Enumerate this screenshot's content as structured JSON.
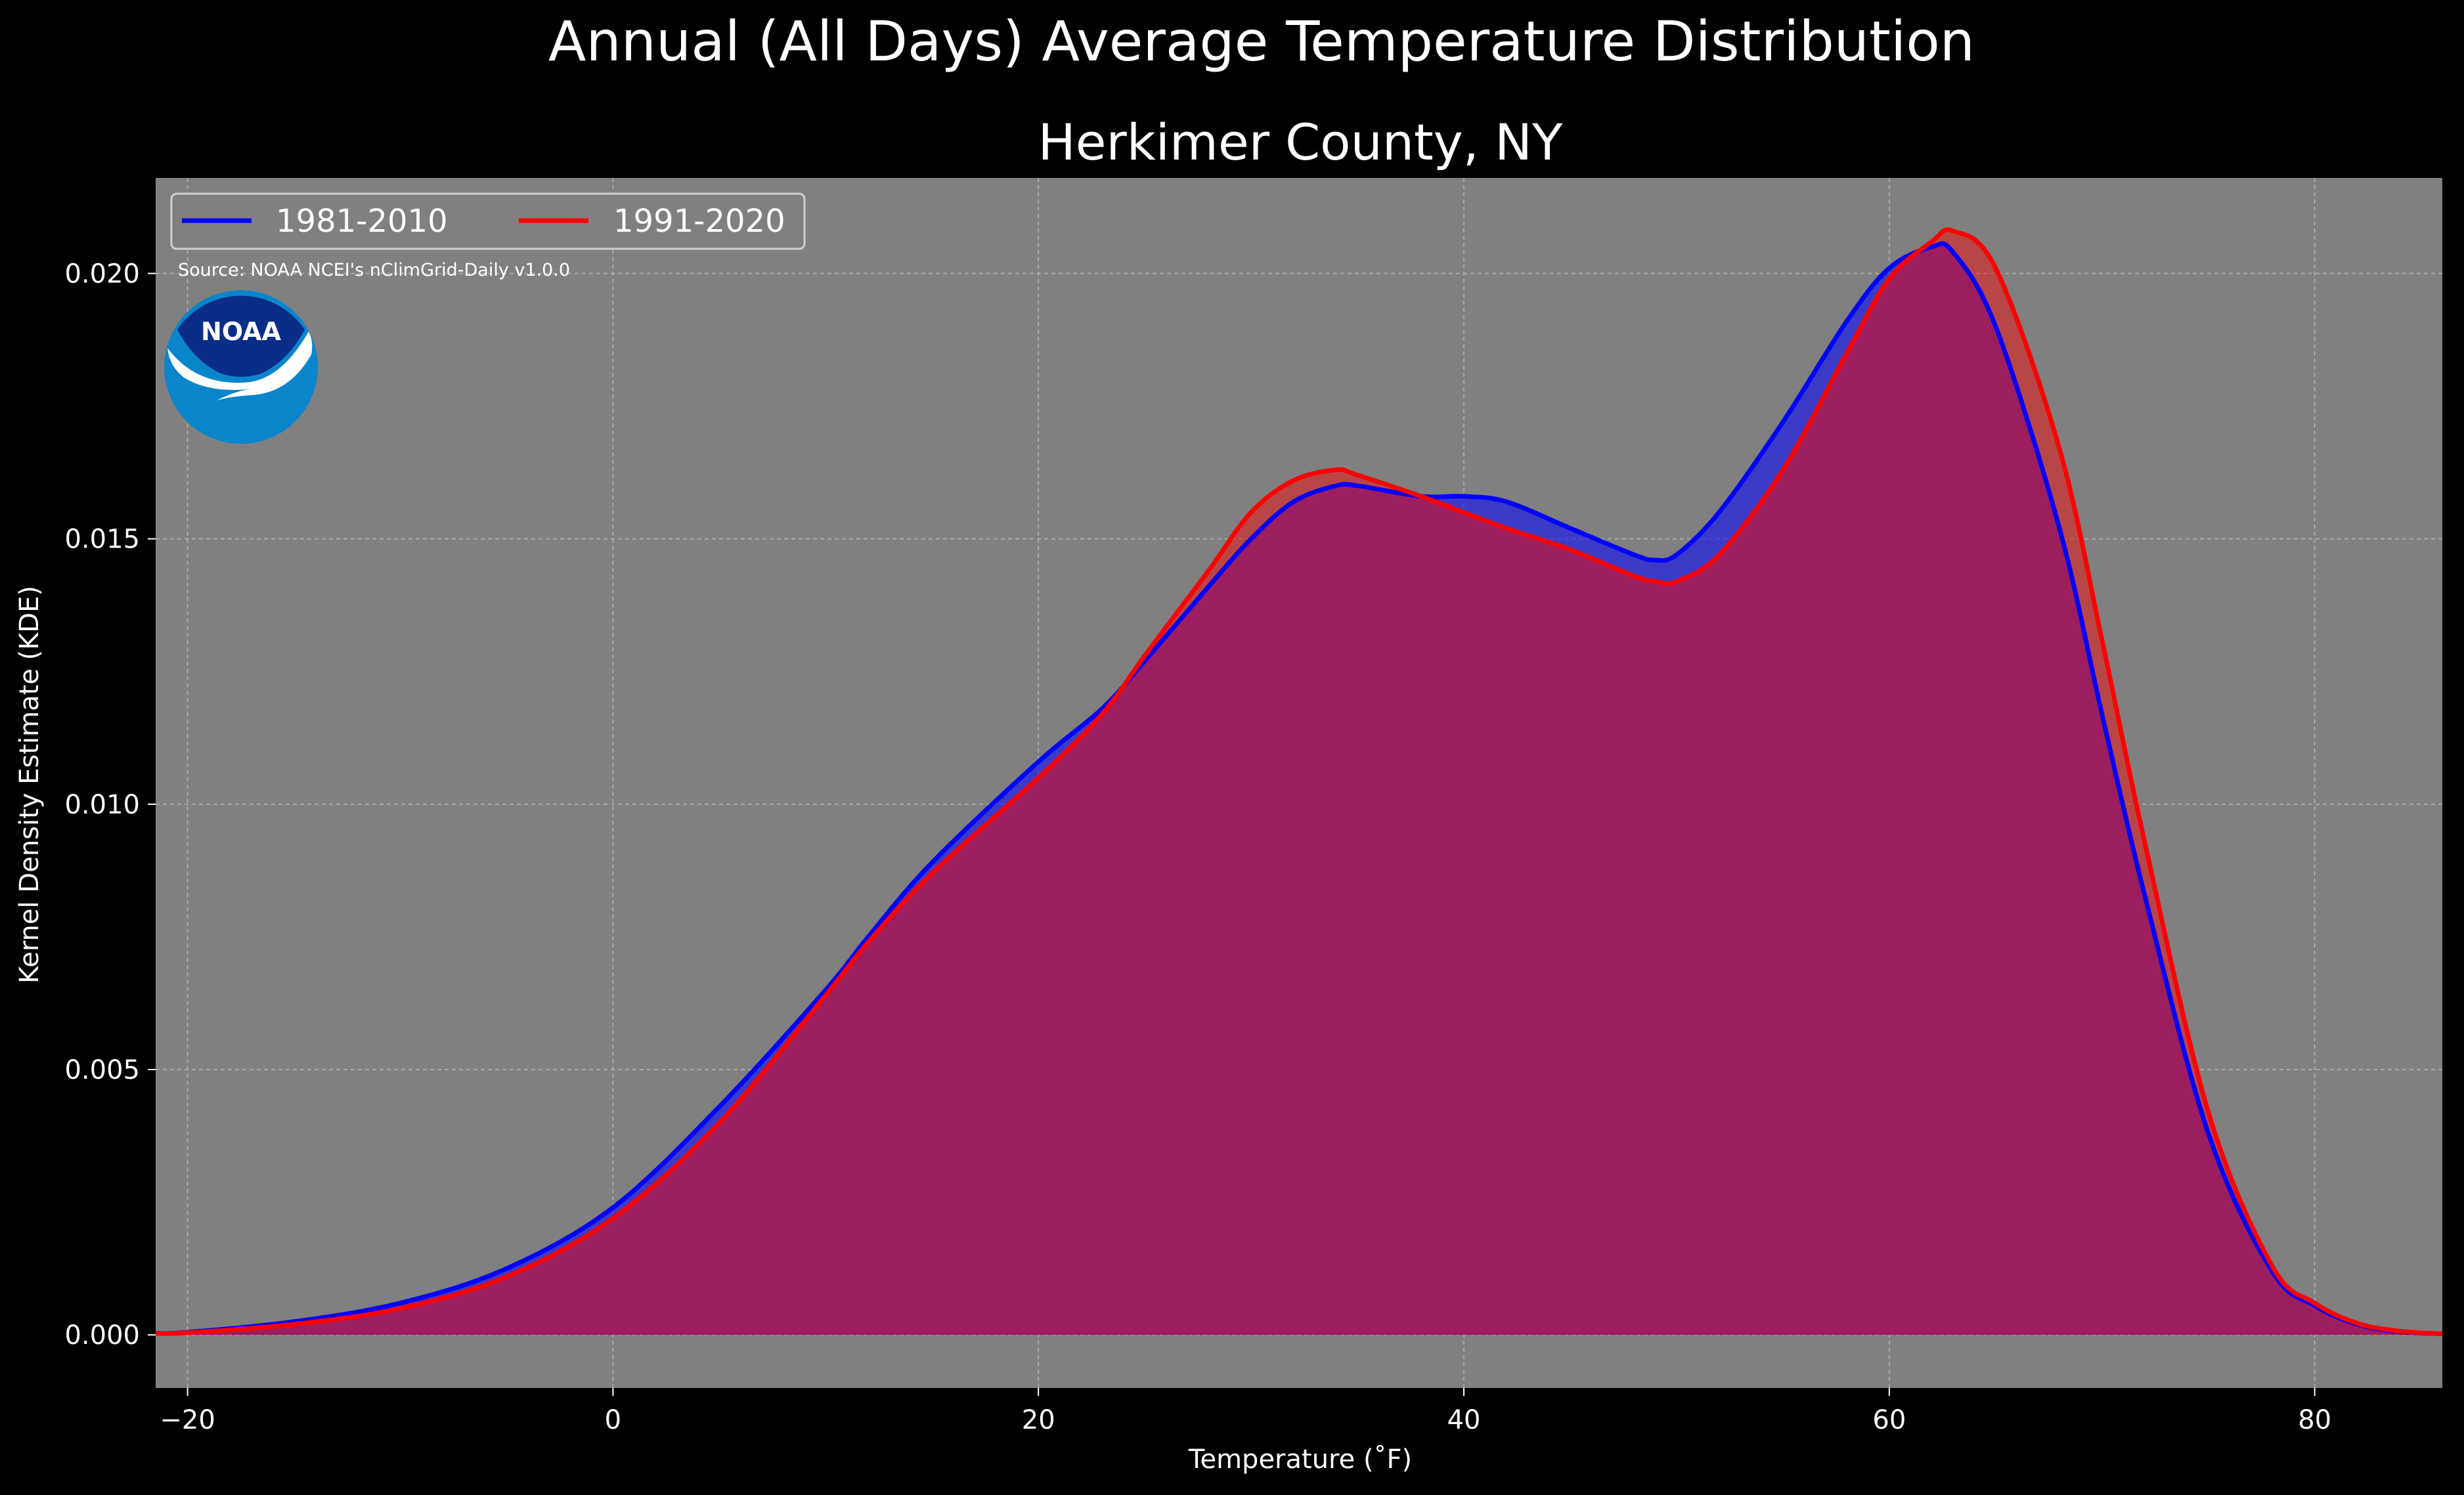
{
  "chart_data": {
    "type": "area",
    "title": "Annual (All Days) Average Temperature Distribution",
    "subtitle": "Herkimer County, NY",
    "xlabel": "Temperature (˚F)",
    "ylabel": "Kernel Density Estimate (KDE)",
    "source": "Source: NOAA NCEI's nClimGrid-Daily v1.0.0",
    "logo_text": "NOAA",
    "xlim": [
      -21.5,
      86
    ],
    "ylim": [
      -0.001,
      0.0218
    ],
    "xticks": [
      -20,
      0,
      20,
      40,
      60,
      80
    ],
    "xtick_labels": [
      "−20",
      "0",
      "20",
      "40",
      "60",
      "80"
    ],
    "yticks": [
      0.0,
      0.005,
      0.01,
      0.015,
      0.02
    ],
    "ytick_labels": [
      "0.000",
      "0.005",
      "0.010",
      "0.015",
      "0.020"
    ],
    "grid": true,
    "legend_position": "top-left",
    "colors": {
      "background": "#000000",
      "plot_background": "#808080",
      "series_1981": "#0000ff",
      "series_1991": "#ff0000",
      "overlap_fill": "#9d1e5e",
      "text": "#ffffff",
      "noaa_dark": "#0a2e86",
      "noaa_light": "#0a85cc"
    },
    "x": [
      -21.5,
      -20,
      -15,
      -10,
      -5,
      0,
      5,
      10,
      12,
      15,
      20,
      23,
      25,
      28,
      30,
      32,
      34,
      35,
      38,
      40,
      42,
      45,
      48,
      49,
      50,
      52,
      55,
      58,
      60,
      62,
      63,
      65,
      68,
      70,
      72,
      75,
      78,
      80,
      82,
      84,
      86
    ],
    "series": [
      {
        "name": "1981-2010",
        "color": "#0000ff",
        "values": [
          3e-05,
          5e-05,
          0.00025,
          0.0006,
          0.00125,
          0.0024,
          0.0043,
          0.0065,
          0.0075,
          0.0089,
          0.0108,
          0.0118,
          0.0127,
          0.0141,
          0.015,
          0.0157,
          0.016,
          0.016,
          0.0158,
          0.0158,
          0.0157,
          0.0152,
          0.0147,
          0.0146,
          0.0147,
          0.0155,
          0.0172,
          0.0191,
          0.0201,
          0.0205,
          0.0204,
          0.019,
          0.0152,
          0.0117,
          0.0083,
          0.0038,
          0.0012,
          0.00055,
          0.0002,
          6e-05,
          2e-05
        ]
      },
      {
        "name": "1991-2020",
        "color": "#ff0000",
        "values": [
          3e-05,
          4e-05,
          0.0002,
          0.0005,
          0.0011,
          0.0022,
          0.004,
          0.0064,
          0.0074,
          0.0087,
          0.0105,
          0.0117,
          0.0128,
          0.0144,
          0.0155,
          0.0161,
          0.0163,
          0.0162,
          0.0158,
          0.0155,
          0.0152,
          0.0148,
          0.0143,
          0.0142,
          0.0142,
          0.0147,
          0.0163,
          0.0185,
          0.0199,
          0.0206,
          0.0208,
          0.0201,
          0.0167,
          0.0131,
          0.0093,
          0.0042,
          0.0013,
          0.0006,
          0.00022,
          7e-05,
          2e-05
        ]
      }
    ]
  }
}
